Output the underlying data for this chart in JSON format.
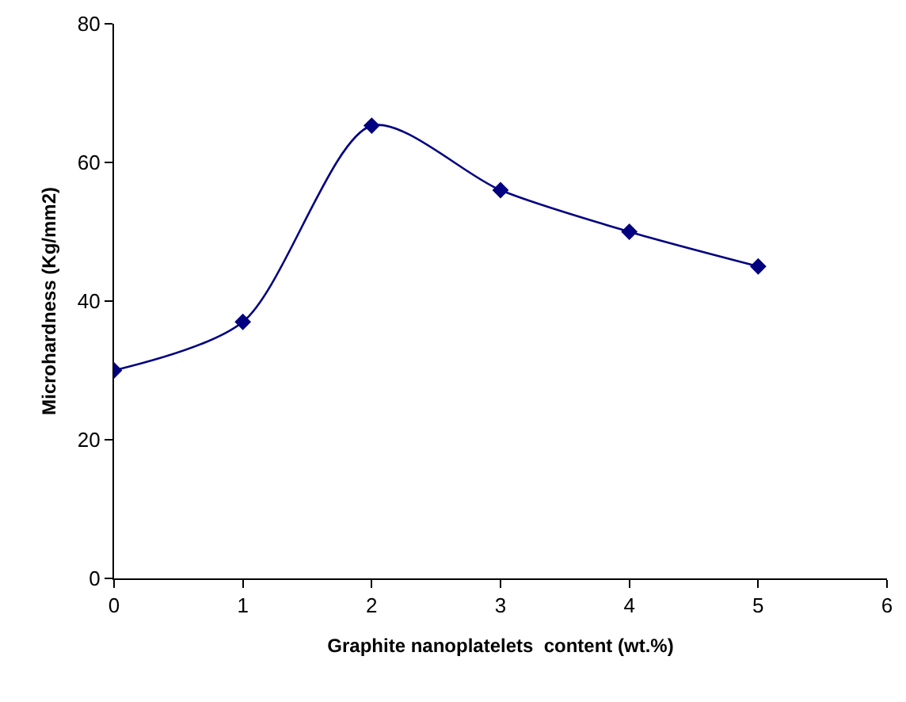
{
  "chart_data": {
    "type": "line",
    "xlabel": "Graphite nanoplatelets  content (wt.%)",
    "ylabel": "Microhardness (Kg/mm2)",
    "x": [
      0,
      1,
      2,
      3,
      4,
      5
    ],
    "series": [
      {
        "color": "#000080",
        "values": [
          30,
          37,
          65.3,
          56,
          50,
          45
        ]
      }
    ],
    "xlim": [
      0,
      6
    ],
    "xticks": [
      0,
      1,
      2,
      3,
      4,
      5,
      6
    ],
    "ylim": [
      0,
      80
    ],
    "yticks": [
      0,
      20,
      40,
      60,
      80
    ],
    "grid": false,
    "legend": false,
    "marker": "diamond",
    "line_style": "solid"
  }
}
